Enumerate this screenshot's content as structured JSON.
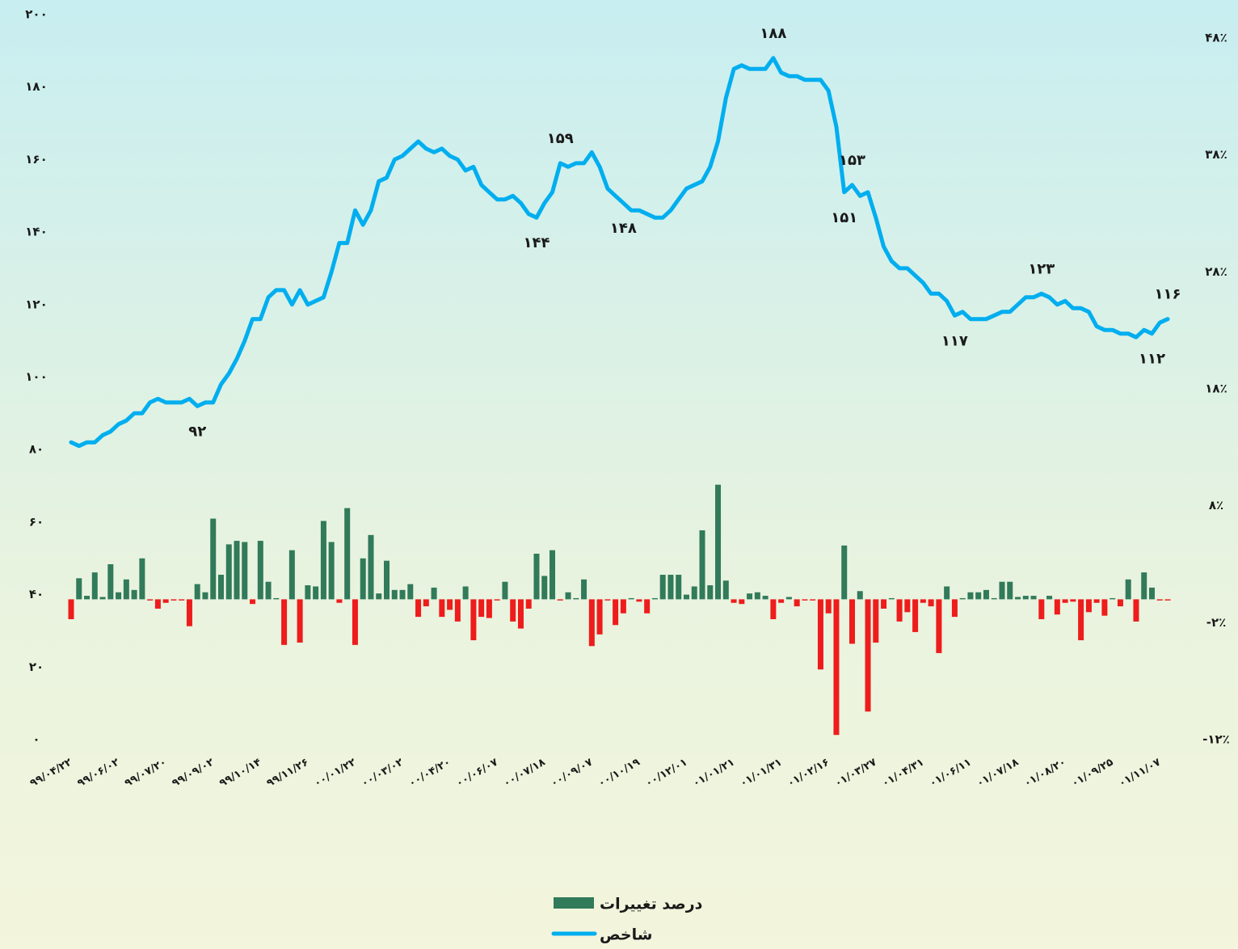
{
  "chart_data": {
    "type": "combo",
    "categories": [
      "۹۹/۰۴/۲۲",
      null,
      null,
      null,
      null,
      null,
      "۹۹/۰۶/۰۲",
      null,
      null,
      null,
      null,
      null,
      "۹۹/۰۷/۲۰",
      null,
      null,
      null,
      null,
      null,
      "۹۹/۰۹/۰۲",
      null,
      null,
      null,
      null,
      null,
      "۹۹/۱۰/۱۴",
      null,
      null,
      null,
      null,
      null,
      "۹۹/۱۱/۲۶",
      null,
      null,
      null,
      null,
      null,
      "۰۰/۰۱/۲۲",
      null,
      null,
      null,
      null,
      null,
      "۰۰/۰۳/۰۲",
      null,
      null,
      null,
      null,
      null,
      "۰۰/۰۴/۲۰",
      null,
      null,
      null,
      null,
      null,
      "۰۰/۰۶/۰۷",
      null,
      null,
      null,
      null,
      null,
      "۰۰/۰۷/۱۸",
      null,
      null,
      null,
      null,
      null,
      "۰۰/۰۹/۰۷",
      null,
      null,
      null,
      null,
      null,
      "۰۰/۱۰/۱۹",
      null,
      null,
      null,
      null,
      null,
      "۰۰/۱۲/۰۱",
      null,
      null,
      null,
      null,
      null,
      "۰۱/۰۱/۲۱",
      null,
      null,
      null,
      null,
      null,
      "۰۱/۰۱/۳۱",
      null,
      null,
      null,
      null,
      null,
      "۰۱/۰۲/۱۶",
      null,
      null,
      null,
      null,
      null,
      "۰۱/۰۳/۲۷",
      null,
      null,
      null,
      null,
      null,
      "۰۱/۰۴/۳۱",
      null,
      null,
      null,
      null,
      null,
      "۰۱/۰۶/۱۱",
      null,
      null,
      null,
      null,
      null,
      "۰۱/۰۷/۱۸",
      null,
      null,
      null,
      null,
      null,
      "۰۱/۰۸/۲۰",
      null,
      null,
      null,
      null,
      null,
      "۰۱/۰۹/۲۵",
      null,
      null,
      null,
      null,
      null,
      "۰۱/۱۱/۰۷",
      null
    ],
    "series": [
      {
        "name": "درصد تغییرات",
        "type": "bar",
        "axis": "y2",
        "color": "#317a5a",
        "negative_color": "#ee1c1c",
        "values": [
          -1.7,
          1.8,
          0.3,
          2.3,
          0.2,
          3.0,
          0.6,
          1.7,
          0.8,
          3.5,
          -0.1,
          -0.8,
          -0.3,
          -0.1,
          -0.1,
          -2.3,
          1.3,
          0.6,
          6.9,
          2.1,
          4.7,
          5.0,
          4.9,
          -0.4,
          5.0,
          1.5,
          0.1,
          -3.9,
          4.2,
          -3.7,
          1.2,
          1.1,
          6.7,
          4.9,
          -0.3,
          7.8,
          -3.9,
          3.5,
          5.5,
          0.5,
          3.3,
          0.8,
          0.8,
          1.3,
          -1.5,
          -0.6,
          1.0,
          -1.5,
          -0.9,
          -1.9,
          1.1,
          -3.5,
          -1.5,
          -1.6,
          -0.1,
          1.5,
          -1.9,
          -2.5,
          -0.8,
          3.9,
          2.0,
          4.2,
          -0.1,
          0.6,
          0.1,
          1.7,
          -4.0,
          -3.0,
          -0.1,
          -2.2,
          -1.2,
          0.1,
          -0.2,
          -1.2,
          0.1,
          2.1,
          2.1,
          2.1,
          0.4,
          1.1,
          5.9,
          1.2,
          9.8,
          1.6,
          -0.3,
          -0.4,
          0.5,
          0.6,
          0.3,
          -1.7,
          -0.3,
          0.2,
          -0.6,
          -0.1,
          -0.1,
          -6.0,
          -1.2,
          -11.6,
          4.6,
          -3.8,
          0.7,
          -9.6,
          -3.7,
          -0.8,
          0.1,
          -1.9,
          -1.1,
          -2.8,
          -0.3,
          -0.6,
          -4.6,
          1.1,
          -1.5,
          0.1,
          0.6,
          0.6,
          0.8,
          0.1,
          1.5,
          1.5,
          0.2,
          0.3,
          0.3,
          -1.7,
          0.3,
          -1.3,
          -0.3,
          -0.2,
          -3.5,
          -1.1,
          -0.3,
          -1.4,
          0.1,
          -0.6,
          1.7,
          -1.9,
          2.3,
          1.0,
          -0.1,
          -0.1
        ]
      },
      {
        "name": "شاخص",
        "type": "line",
        "axis": "y",
        "color": "#00aeef",
        "values": [
          82,
          81,
          82,
          82,
          84,
          85,
          87,
          88,
          90,
          90,
          93,
          94,
          93,
          93,
          93,
          94,
          92,
          93,
          93,
          98,
          101,
          105,
          110,
          116,
          116,
          122,
          124,
          124,
          120,
          124,
          120,
          121,
          122,
          129,
          137,
          137,
          146,
          142,
          146,
          154,
          155,
          160,
          161,
          163,
          165,
          163,
          162,
          163,
          161,
          160,
          157,
          158,
          153,
          151,
          149,
          149,
          150,
          148,
          145,
          144,
          148,
          151,
          159,
          158,
          159,
          159,
          162,
          158,
          152,
          150,
          148,
          146,
          146,
          145,
          144,
          144,
          146,
          149,
          152,
          153,
          154,
          158,
          165,
          177,
          185,
          186,
          185,
          185,
          185,
          188,
          184,
          183,
          183,
          182,
          182,
          182,
          179,
          169,
          151,
          153,
          150,
          151,
          144,
          136,
          132,
          130,
          130,
          128,
          126,
          123,
          123,
          121,
          117,
          118,
          116,
          116,
          116,
          117,
          118,
          118,
          120,
          122,
          122,
          123,
          122,
          120,
          121,
          119,
          119,
          118,
          114,
          113,
          113,
          112,
          112,
          111,
          113,
          112,
          115,
          116
        ],
        "value_labels": [
          null,
          null,
          null,
          null,
          null,
          null,
          null,
          null,
          null,
          null,
          null,
          null,
          null,
          null,
          null,
          null,
          "۹۲",
          null,
          null,
          null,
          null,
          null,
          null,
          null,
          null,
          null,
          null,
          null,
          null,
          null,
          null,
          null,
          null,
          null,
          null,
          null,
          null,
          null,
          null,
          null,
          null,
          null,
          null,
          null,
          null,
          null,
          null,
          null,
          null,
          null,
          null,
          null,
          null,
          null,
          null,
          null,
          null,
          null,
          null,
          "۱۴۴",
          null,
          null,
          "۱۵۹",
          null,
          null,
          null,
          null,
          null,
          null,
          null,
          "۱۴۸",
          null,
          null,
          null,
          null,
          null,
          null,
          null,
          null,
          null,
          null,
          null,
          null,
          null,
          null,
          null,
          null,
          null,
          null,
          "۱۸۸",
          null,
          null,
          null,
          null,
          null,
          null,
          null,
          null,
          "۱۵۱",
          "۱۵۳",
          null,
          null,
          null,
          null,
          null,
          null,
          null,
          null,
          null,
          null,
          null,
          null,
          "۱۱۷",
          null,
          null,
          null,
          null,
          null,
          null,
          null,
          null,
          null,
          null,
          "۱۲۳",
          null,
          null,
          null,
          null,
          null,
          null,
          null,
          null,
          null,
          null,
          null,
          null,
          null,
          "۱۱۲",
          null,
          "۱۱۶"
        ]
      }
    ],
    "ylim": [
      0,
      200
    ],
    "yticks": [
      {
        "value": 0,
        "label": "۰"
      },
      {
        "value": 20,
        "label": "۲۰"
      },
      {
        "value": 40,
        "label": "۴۰"
      },
      {
        "value": 60,
        "label": "۶۰"
      },
      {
        "value": 80,
        "label": "۸۰"
      },
      {
        "value": 100,
        "label": "۱۰۰"
      },
      {
        "value": 120,
        "label": "۱۲۰"
      },
      {
        "value": 140,
        "label": "۱۴۰"
      },
      {
        "value": 160,
        "label": "۱۶۰"
      },
      {
        "value": 180,
        "label": "۱۸۰"
      },
      {
        "value": 200,
        "label": "۲۰۰"
      }
    ],
    "y2lim": [
      -12,
      48
    ],
    "y2ticks": [
      {
        "value": -12,
        "label": "-۱۲٪"
      },
      {
        "value": -2,
        "label": "-۲٪"
      },
      {
        "value": 8,
        "label": "۸٪"
      },
      {
        "value": 18,
        "label": "۱۸٪"
      },
      {
        "value": 28,
        "label": "۲۸٪"
      },
      {
        "value": 38,
        "label": "۳۸٪"
      },
      {
        "value": 48,
        "label": "۴۸٪"
      }
    ],
    "grid": false,
    "legend": "bottom"
  }
}
